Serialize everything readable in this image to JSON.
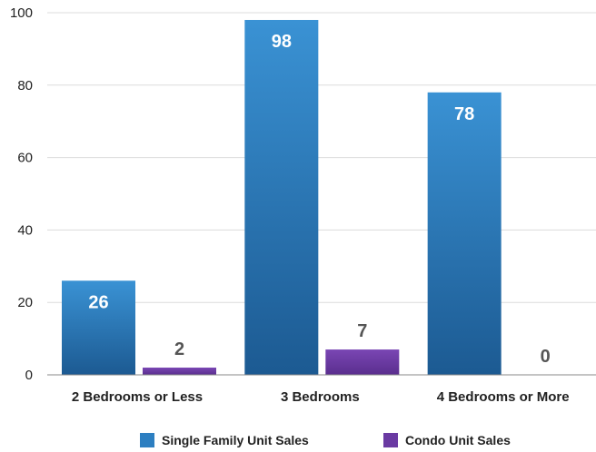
{
  "chart_data": {
    "type": "bar",
    "categories": [
      "2 Bedrooms or Less",
      "3 Bedrooms",
      "4 Bedrooms or More"
    ],
    "series": [
      {
        "name": "Single Family Unit Sales",
        "values": [
          26,
          98,
          78
        ],
        "color": "#2D7FC1",
        "label_color": "#ffffff",
        "label_position": "inside-top"
      },
      {
        "name": "Condo Unit Sales",
        "values": [
          2,
          7,
          0
        ],
        "color": "#6A3AA2",
        "label_color": "#555555",
        "label_position": "above"
      }
    ],
    "ylim": [
      0,
      100
    ],
    "yticks": [
      0,
      20,
      40,
      60,
      80,
      100
    ],
    "grid": true,
    "legend": "bottom-center"
  }
}
